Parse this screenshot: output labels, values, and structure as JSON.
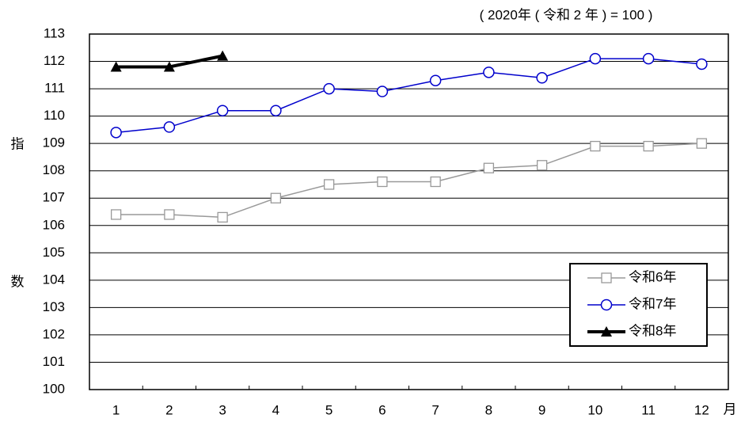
{
  "chart_data": {
    "type": "line",
    "subtitle": "( 2020年 ( 令和 2 年 ) = 100 )",
    "ylabel": [
      "指",
      "数"
    ],
    "xlabel": "月",
    "categories": [
      "1",
      "2",
      "3",
      "4",
      "5",
      "6",
      "7",
      "8",
      "9",
      "10",
      "11",
      "12"
    ],
    "series": [
      {
        "name": "令和6年",
        "color": "#999999",
        "marker": "square",
        "values": [
          106.4,
          106.4,
          106.3,
          107.0,
          107.5,
          107.6,
          107.6,
          108.1,
          108.2,
          108.9,
          108.9,
          109.0
        ]
      },
      {
        "name": "令和7年",
        "color": "#0000cc",
        "marker": "circle",
        "values": [
          109.4,
          109.6,
          110.2,
          110.2,
          111.0,
          110.9,
          111.3,
          111.6,
          111.4,
          112.1,
          112.1,
          111.9
        ]
      },
      {
        "name": "令和8年",
        "color": "#000000",
        "marker": "triangle",
        "values": [
          111.8,
          111.8,
          112.2,
          null,
          null,
          null,
          null,
          null,
          null,
          null,
          null,
          null
        ]
      }
    ],
    "ylim": [
      100,
      113
    ],
    "yticks": [
      100,
      101,
      102,
      103,
      104,
      105,
      106,
      107,
      108,
      109,
      110,
      111,
      112,
      113
    ],
    "grid": true,
    "legend": "lower-right"
  }
}
